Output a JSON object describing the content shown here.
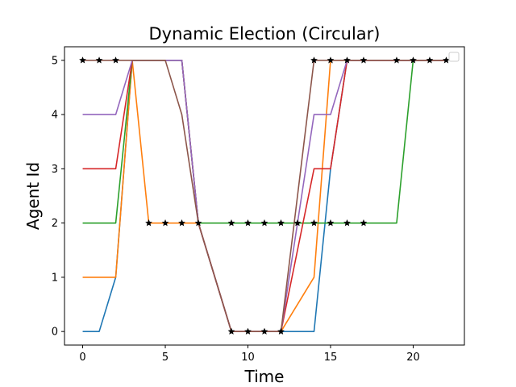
{
  "chart_data": {
    "type": "line",
    "title": "Dynamic Election (Circular)",
    "xlabel": "Time",
    "ylabel": "Agent Id",
    "xlim": [
      -1.1,
      23.1
    ],
    "ylim": [
      -0.25,
      5.25
    ],
    "xticks": [
      0,
      5,
      10,
      15,
      20
    ],
    "yticks": [
      0,
      1,
      2,
      3,
      4,
      5
    ],
    "grid": false,
    "legend": "upper-right (empty)",
    "x": [
      0,
      1,
      2,
      3,
      4,
      5,
      6,
      7,
      8,
      9,
      10,
      11,
      12,
      13,
      14,
      15,
      16,
      17,
      18,
      19,
      20,
      21,
      22
    ],
    "series": [
      {
        "color": "#1f77b4",
        "values": [
          0,
          0,
          1,
          5,
          5,
          5,
          5,
          2,
          1,
          0,
          0,
          0,
          0,
          0,
          0,
          3,
          5,
          5,
          5,
          5,
          5,
          5,
          5
        ]
      },
      {
        "color": "#ff7f0e",
        "values": [
          1,
          1,
          1,
          5,
          2,
          2,
          2,
          2,
          1,
          0,
          0,
          0,
          0,
          0.5,
          1,
          5,
          5,
          5,
          5,
          5,
          5,
          5,
          5
        ]
      },
      {
        "color": "#2ca02c",
        "values": [
          2,
          2,
          2,
          5,
          5,
          5,
          5,
          2,
          2,
          2,
          2,
          2,
          2,
          2,
          2,
          2,
          2,
          2,
          2,
          2,
          5,
          5,
          5
        ]
      },
      {
        "color": "#d62728",
        "values": [
          3,
          3,
          3,
          5,
          5,
          5,
          5,
          2,
          1,
          0,
          0,
          0,
          0,
          1.5,
          3,
          3,
          5,
          5,
          5,
          5,
          5,
          5,
          5
        ]
      },
      {
        "color": "#9467bd",
        "values": [
          4,
          4,
          4,
          5,
          5,
          5,
          5,
          2,
          1,
          0,
          0,
          0,
          0,
          2,
          4,
          4,
          5,
          5,
          5,
          5,
          5,
          5,
          5
        ]
      },
      {
        "color": "#8c564b",
        "values": [
          5,
          5,
          5,
          5,
          5,
          5,
          4,
          2,
          1,
          0,
          0,
          0,
          0,
          2.5,
          5,
          5,
          5,
          5,
          5,
          5,
          5,
          5,
          5
        ]
      }
    ],
    "markers": {
      "style": "star",
      "color": "#000000",
      "points": [
        [
          0,
          5
        ],
        [
          1,
          5
        ],
        [
          2,
          5
        ],
        [
          4,
          2
        ],
        [
          5,
          2
        ],
        [
          6,
          2
        ],
        [
          7,
          2
        ],
        [
          9,
          0
        ],
        [
          10,
          0
        ],
        [
          11,
          0
        ],
        [
          12,
          0
        ],
        [
          9,
          2
        ],
        [
          10,
          2
        ],
        [
          11,
          2
        ],
        [
          12,
          2
        ],
        [
          13,
          2
        ],
        [
          14,
          2
        ],
        [
          15,
          2
        ],
        [
          16,
          2
        ],
        [
          17,
          2
        ],
        [
          14,
          5
        ],
        [
          15,
          5
        ],
        [
          16,
          5
        ],
        [
          17,
          5
        ],
        [
          19,
          5
        ],
        [
          20,
          5
        ],
        [
          21,
          5
        ],
        [
          22,
          5
        ]
      ]
    }
  }
}
